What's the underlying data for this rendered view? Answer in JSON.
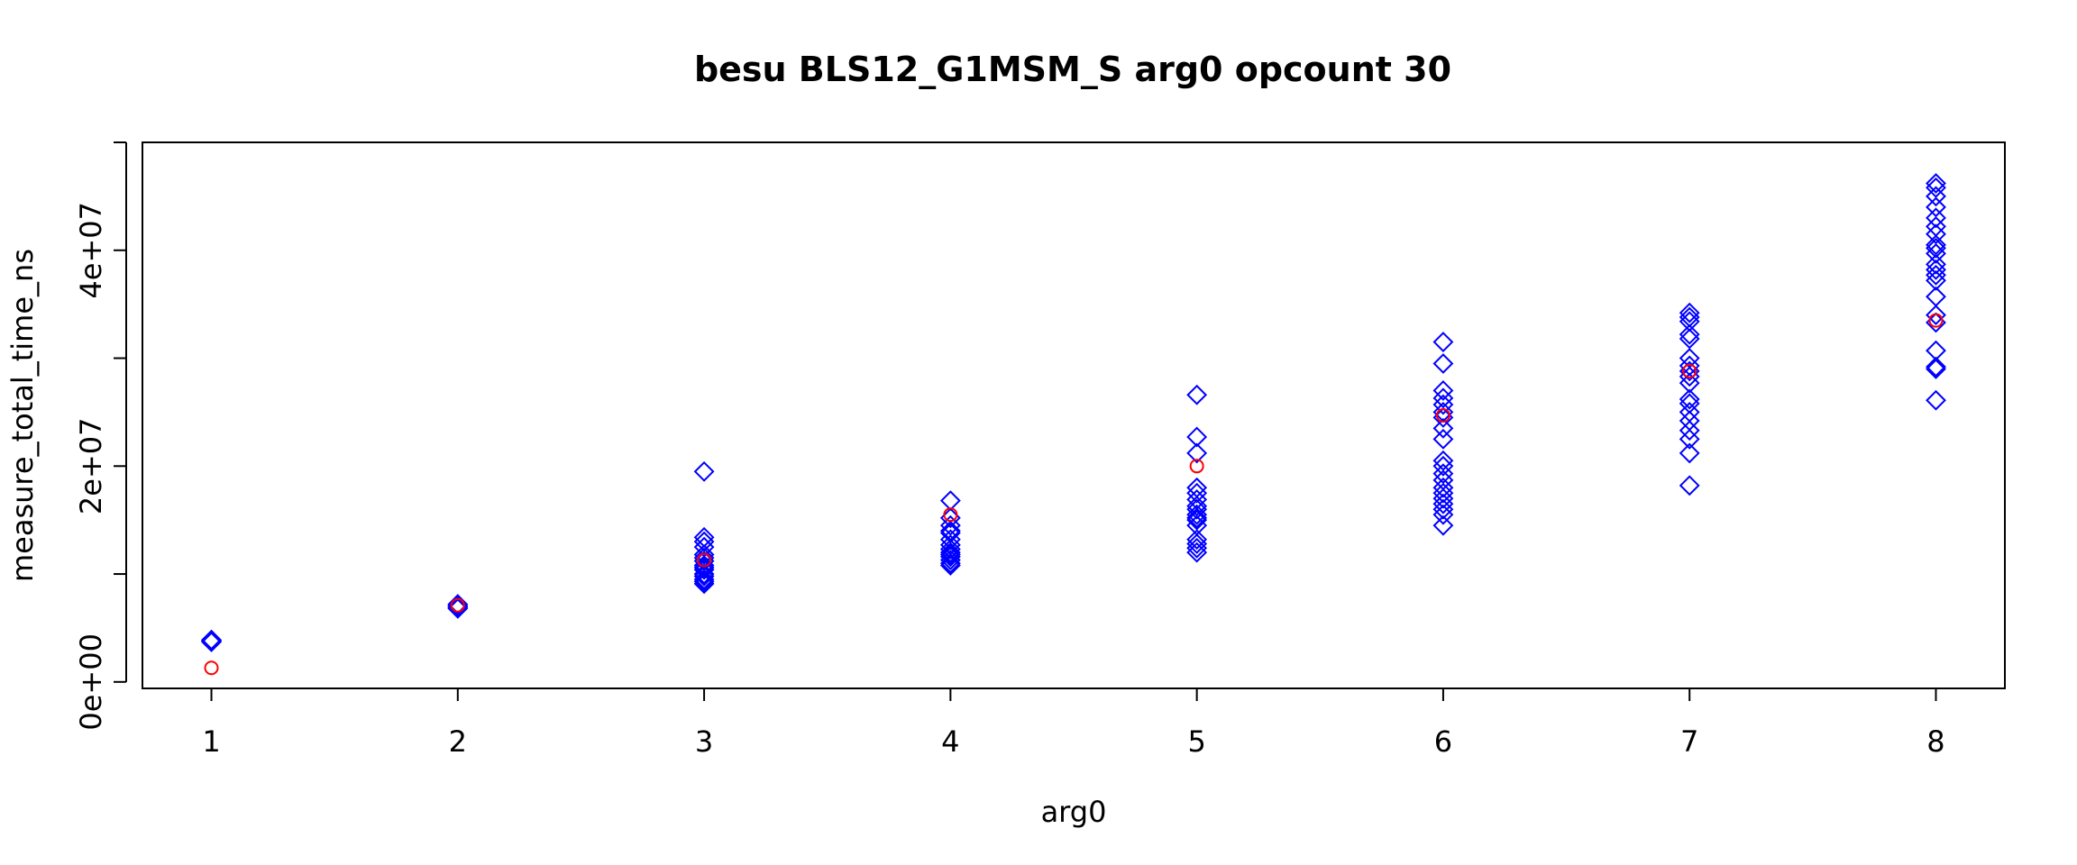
{
  "chart_data": {
    "type": "scatter",
    "title": "besu BLS12_G1MSM_S arg0 opcount 30",
    "xlabel": "arg0",
    "ylabel": "measure_total_time_ns",
    "xlim": [
      0.72,
      8.28
    ],
    "ylim": [
      -600000,
      50000000
    ],
    "x_ticks": [
      1,
      2,
      3,
      4,
      5,
      6,
      7,
      8
    ],
    "y_ticks": [
      0,
      10000000,
      20000000,
      30000000,
      40000000,
      50000000
    ],
    "y_tick_labels": [
      {
        "value": 0,
        "label": "0e+00"
      },
      {
        "value": 20000000,
        "label": "2e+07"
      },
      {
        "value": 40000000,
        "label": "4e+07"
      }
    ],
    "grid": false,
    "series": [
      {
        "marker": "diamond",
        "color": "#0000ff",
        "points": [
          [
            1,
            3700000
          ],
          [
            1,
            3800000
          ],
          [
            1,
            3900000
          ],
          [
            1,
            3750000
          ],
          [
            1,
            3850000
          ],
          [
            2,
            6800000
          ],
          [
            2,
            6900000
          ],
          [
            2,
            7000000
          ],
          [
            2,
            7100000
          ],
          [
            2,
            7200000
          ],
          [
            2,
            6950000
          ],
          [
            3,
            19500000
          ],
          [
            3,
            13400000
          ],
          [
            3,
            13000000
          ],
          [
            3,
            12500000
          ],
          [
            3,
            11800000
          ],
          [
            3,
            11200000
          ],
          [
            3,
            10800000
          ],
          [
            3,
            10400000
          ],
          [
            3,
            10000000
          ],
          [
            3,
            9800000
          ],
          [
            3,
            9500000
          ],
          [
            3,
            9300000
          ],
          [
            3,
            9100000
          ],
          [
            3,
            11500000
          ],
          [
            3,
            10600000
          ],
          [
            4,
            16800000
          ],
          [
            4,
            15200000
          ],
          [
            4,
            14500000
          ],
          [
            4,
            13800000
          ],
          [
            4,
            13200000
          ],
          [
            4,
            12700000
          ],
          [
            4,
            12300000
          ],
          [
            4,
            12000000
          ],
          [
            4,
            11600000
          ],
          [
            4,
            11300000
          ],
          [
            4,
            11000000
          ],
          [
            4,
            10800000
          ],
          [
            4,
            14000000
          ],
          [
            4,
            11800000
          ],
          [
            5,
            26600000
          ],
          [
            5,
            22700000
          ],
          [
            5,
            21200000
          ],
          [
            5,
            18000000
          ],
          [
            5,
            17500000
          ],
          [
            5,
            16900000
          ],
          [
            5,
            16000000
          ],
          [
            5,
            15500000
          ],
          [
            5,
            15000000
          ],
          [
            5,
            14500000
          ],
          [
            5,
            13200000
          ],
          [
            5,
            12800000
          ],
          [
            5,
            12400000
          ],
          [
            5,
            12000000
          ],
          [
            5,
            16300000
          ],
          [
            5,
            15200000
          ],
          [
            6,
            31500000
          ],
          [
            6,
            29500000
          ],
          [
            6,
            27000000
          ],
          [
            6,
            26300000
          ],
          [
            6,
            25700000
          ],
          [
            6,
            25000000
          ],
          [
            6,
            24500000
          ],
          [
            6,
            23500000
          ],
          [
            6,
            22500000
          ],
          [
            6,
            20500000
          ],
          [
            6,
            20000000
          ],
          [
            6,
            19300000
          ],
          [
            6,
            18700000
          ],
          [
            6,
            18000000
          ],
          [
            6,
            17500000
          ],
          [
            6,
            17000000
          ],
          [
            6,
            16500000
          ],
          [
            6,
            16000000
          ],
          [
            6,
            15500000
          ],
          [
            6,
            14500000
          ],
          [
            7,
            34200000
          ],
          [
            7,
            33800000
          ],
          [
            7,
            33400000
          ],
          [
            7,
            32200000
          ],
          [
            7,
            31800000
          ],
          [
            7,
            30000000
          ],
          [
            7,
            29300000
          ],
          [
            7,
            28800000
          ],
          [
            7,
            28300000
          ],
          [
            7,
            27700000
          ],
          [
            7,
            26200000
          ],
          [
            7,
            25800000
          ],
          [
            7,
            25000000
          ],
          [
            7,
            24200000
          ],
          [
            7,
            23300000
          ],
          [
            7,
            22500000
          ],
          [
            7,
            21200000
          ],
          [
            7,
            18200000
          ],
          [
            8,
            46200000
          ],
          [
            8,
            45800000
          ],
          [
            8,
            45000000
          ],
          [
            8,
            44000000
          ],
          [
            8,
            43000000
          ],
          [
            8,
            42200000
          ],
          [
            8,
            41500000
          ],
          [
            8,
            40500000
          ],
          [
            8,
            40200000
          ],
          [
            8,
            39700000
          ],
          [
            8,
            38700000
          ],
          [
            8,
            38200000
          ],
          [
            8,
            37700000
          ],
          [
            8,
            37200000
          ],
          [
            8,
            35700000
          ],
          [
            8,
            34000000
          ],
          [
            8,
            33300000
          ],
          [
            8,
            30700000
          ],
          [
            8,
            29200000
          ],
          [
            8,
            29000000
          ],
          [
            8,
            26100000
          ]
        ]
      },
      {
        "marker": "circle",
        "color": "#ff0000",
        "points": [
          [
            1,
            1300000
          ],
          [
            2,
            7100000
          ],
          [
            3,
            11300000
          ],
          [
            4,
            15500000
          ],
          [
            5,
            20000000
          ],
          [
            6,
            24700000
          ],
          [
            7,
            28800000
          ],
          [
            8,
            33500000
          ]
        ]
      }
    ]
  }
}
